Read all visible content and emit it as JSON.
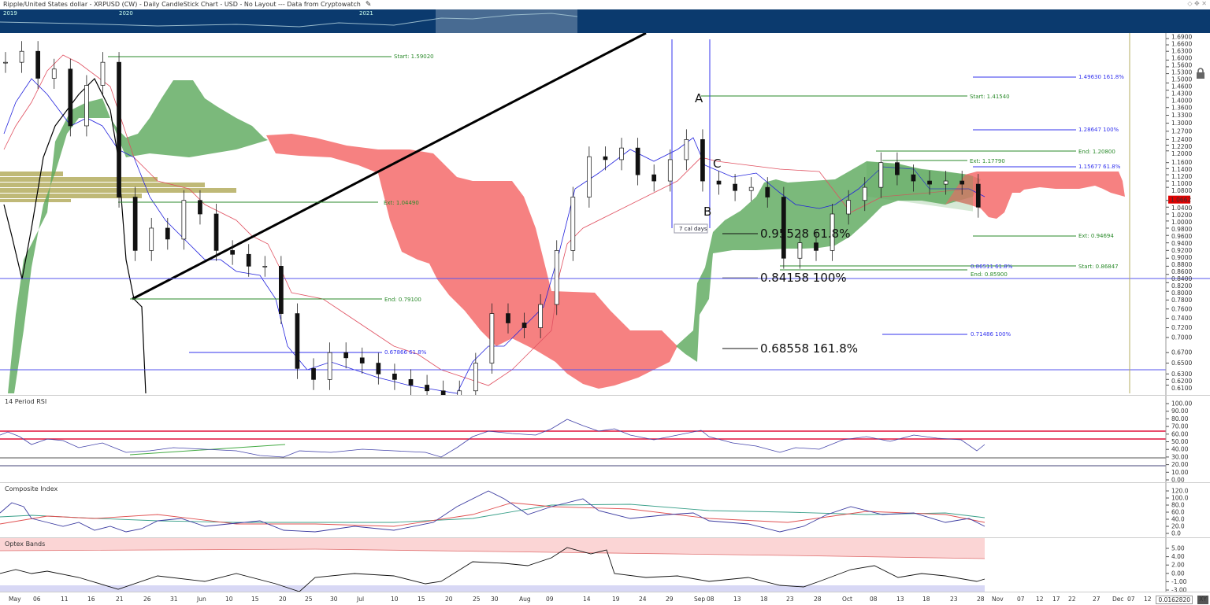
{
  "header": {
    "title": "Ripple/United States dollar - XRPUSD (CW) - Daily CandleStick Chart - USD - No Layout --- Data from Cryptowatch",
    "edit_icon": "pencil-icon"
  },
  "navigator": {
    "years": [
      "2019",
      "2020",
      "2021"
    ]
  },
  "panels": {
    "rsi": "14 Period RSI",
    "composite": "Composite Index",
    "optex": "Optex Bands"
  },
  "colors": {
    "bull_cloud": "#5aa85a",
    "bear_cloud": "#f46b6b",
    "tenkan": "#2222dd",
    "kijun": "#e05060",
    "fib_green": "#2a8a2a",
    "fib_blue": "#3333ee",
    "last_price": "#e00000"
  },
  "main_annotations": {
    "start1": "Start: 1.59020",
    "ext1": "Ext: 1.04490",
    "end1": "End: 0.79100",
    "fib1": "0.67866   61.8%",
    "A": "A",
    "B": "B",
    "C": "C",
    "cal_days": "7 cal days",
    "fib_big_618": "0.95528   61.8%",
    "fib_big_100": "0.84158   100%",
    "fib_big_1618": "0.68558   161.8%",
    "start2": "Start: 1.41540",
    "ext2": "Ext: 1.17790",
    "end2": "End: 1.20800",
    "ext3": "Ext: 0.94694",
    "start3": "Start: 0.86847",
    "fib_r1618": "1.49630   161.8%",
    "fib_r100": "1.28647   100%",
    "fib_r618": "1.15677   61.8%",
    "fib_s618": "0.86511   61.8%",
    "end3": "End: 0.85900",
    "fib_s100": "0.71486   100%"
  },
  "readout": "0.0162820",
  "xy_label": "XY",
  "chart_data": {
    "type": "candlestick",
    "scale": "log",
    "last_price": "1.0662",
    "price_ticks": [
      "1.6900",
      "1.6600",
      "1.6300",
      "1.6000",
      "1.5600",
      "1.5300",
      "1.5000",
      "1.4600",
      "1.4300",
      "1.4000",
      "1.3600",
      "1.3300",
      "1.3000",
      "1.2700",
      "1.2400",
      "1.2200",
      "1.2000",
      "1.1600",
      "1.1400",
      "1.1200",
      "1.1000",
      "1.0800",
      "1.0400",
      "1.0200",
      "1.0000",
      "0.9800",
      "0.9600",
      "0.9400",
      "0.9200",
      "0.9000",
      "0.8800",
      "0.8600",
      "0.8400",
      "0.8200",
      "0.8000",
      "0.7800",
      "0.7600",
      "0.7400",
      "0.7200",
      "0.7000",
      "0.6700",
      "0.6500",
      "0.6300",
      "0.6200",
      "0.6100"
    ],
    "rsi_ticks": [
      "100.00",
      "90.00",
      "80.00",
      "70.00",
      "60.00",
      "50.00",
      "40.00",
      "30.00",
      "20.00",
      "10.00",
      "0.00"
    ],
    "composite_ticks": [
      "120.0",
      "100.0",
      "80.0",
      "60.0",
      "40.0",
      "20.0",
      "0.0"
    ],
    "optex_ticks": [
      "5.00",
      "4.00",
      "2.00",
      "0.00",
      "-1.00",
      "-3.00"
    ],
    "x_ticks": [
      "May",
      "06",
      "11",
      "16",
      "21",
      "26",
      "31",
      "Jun",
      "10",
      "15",
      "20",
      "25",
      "30",
      "Jul",
      "10",
      "15",
      "20",
      "25",
      "30",
      "Aug",
      "09",
      "14",
      "19",
      "24",
      "29",
      "Sep",
      "08",
      "13",
      "18",
      "23",
      "28",
      "Oct",
      "08",
      "13",
      "18",
      "23",
      "28",
      "Nov",
      "07",
      "12",
      "17",
      "22",
      "27",
      "Dec",
      "07",
      "12"
    ],
    "dates": [
      "May 1",
      "May 4",
      "May 7",
      "May 10",
      "May 13",
      "May 16",
      "May 19",
      "May 22",
      "May 25",
      "May 28",
      "May 31",
      "Jun 3",
      "Jun 6",
      "Jun 9",
      "Jun 12",
      "Jun 15",
      "Jun 18",
      "Jun 21",
      "Jun 24",
      "Jun 27",
      "Jun 30",
      "Jul 3",
      "Jul 6",
      "Jul 9",
      "Jul 12",
      "Jul 15",
      "Jul 18",
      "Jul 21",
      "Jul 24",
      "Jul 27",
      "Jul 30",
      "Aug 2",
      "Aug 5",
      "Aug 8",
      "Aug 11",
      "Aug 14",
      "Aug 17",
      "Aug 20",
      "Aug 23",
      "Aug 26",
      "Aug 29",
      "Sep 1",
      "Sep 4",
      "Sep 7",
      "Sep 10",
      "Sep 13",
      "Sep 16",
      "Sep 19",
      "Sep 22",
      "Sep 25",
      "Sep 28",
      "Oct 1",
      "Oct 4",
      "Oct 7",
      "Oct 10",
      "Oct 13",
      "Oct 16",
      "Oct 19",
      "Oct 22",
      "Oct 25",
      "Oct 28"
    ],
    "close": [
      1.55,
      1.6,
      1.48,
      1.52,
      1.29,
      1.45,
      1.55,
      1.05,
      0.9,
      0.96,
      0.93,
      1.04,
      1.0,
      0.9,
      0.89,
      0.86,
      0.86,
      0.75,
      0.64,
      0.62,
      0.67,
      0.66,
      0.65,
      0.63,
      0.62,
      0.61,
      0.6,
      0.59,
      0.6,
      0.65,
      0.75,
      0.73,
      0.72,
      0.77,
      0.9,
      1.05,
      1.18,
      1.17,
      1.21,
      1.12,
      1.1,
      1.17,
      1.24,
      1.1,
      1.09,
      1.07,
      1.08,
      1.05,
      0.88,
      0.92,
      0.9,
      1.0,
      1.04,
      1.08,
      1.16,
      1.12,
      1.1,
      1.09,
      1.1,
      1.09,
      1.02
    ]
  }
}
